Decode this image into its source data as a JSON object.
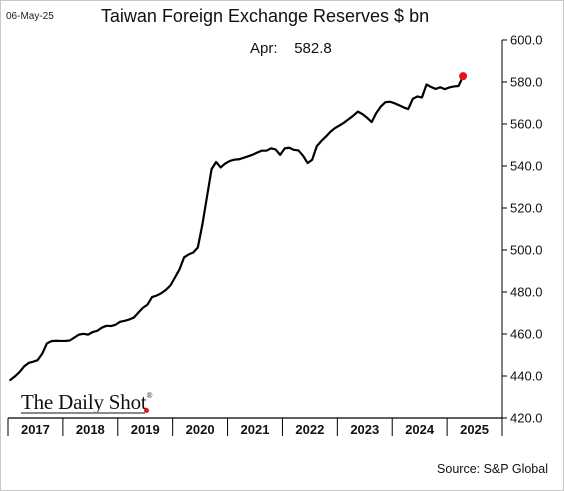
{
  "header": {
    "date": "06-May-25",
    "title": "Taiwan Foreign Exchange Reserves $ bn",
    "annotation_label": "Apr:",
    "annotation_value": "582.8"
  },
  "footer": {
    "source": "Source: S&P Global",
    "logo_text": "The Daily Shot",
    "logo_mark": "®"
  },
  "colors": {
    "line": "#000000",
    "marker": "#e8121b",
    "axis": "#000000"
  },
  "chart_data": {
    "type": "line",
    "title": "Taiwan Foreign Exchange Reserves $ bn",
    "xlabel": "",
    "ylabel": "",
    "grid": false,
    "y_axis_side": "right",
    "ylim": [
      420,
      600
    ],
    "y_ticks": [
      420.0,
      440.0,
      460.0,
      480.0,
      500.0,
      520.0,
      540.0,
      560.0,
      580.0,
      600.0
    ],
    "y_tick_labels": [
      "420.0",
      "440.0",
      "460.0",
      "480.0",
      "500.0",
      "520.0",
      "540.0",
      "560.0",
      "580.0",
      "600.0"
    ],
    "x_start": "2017-01",
    "x_end": "2025-04",
    "year_labels": [
      "2017",
      "2018",
      "2019",
      "2020",
      "2021",
      "2022",
      "2023",
      "2024",
      "2025"
    ],
    "series": [
      {
        "frequency": "monthly",
        "x": [
          "2017-01",
          "2017-02",
          "2017-03",
          "2017-04",
          "2017-05",
          "2017-06",
          "2017-07",
          "2017-08",
          "2017-09",
          "2017-10",
          "2017-11",
          "2017-12",
          "2018-01",
          "2018-02",
          "2018-03",
          "2018-04",
          "2018-05",
          "2018-06",
          "2018-07",
          "2018-08",
          "2018-09",
          "2018-10",
          "2018-11",
          "2018-12",
          "2019-01",
          "2019-02",
          "2019-03",
          "2019-04",
          "2019-05",
          "2019-06",
          "2019-07",
          "2019-08",
          "2019-09",
          "2019-10",
          "2019-11",
          "2019-12",
          "2020-01",
          "2020-02",
          "2020-03",
          "2020-04",
          "2020-05",
          "2020-06",
          "2020-07",
          "2020-08",
          "2020-09",
          "2020-10",
          "2020-11",
          "2020-12",
          "2021-01",
          "2021-02",
          "2021-03",
          "2021-04",
          "2021-05",
          "2021-06",
          "2021-07",
          "2021-08",
          "2021-09",
          "2021-10",
          "2021-11",
          "2021-12",
          "2022-01",
          "2022-02",
          "2022-03",
          "2022-04",
          "2022-05",
          "2022-06",
          "2022-07",
          "2022-08",
          "2022-09",
          "2022-10",
          "2022-11",
          "2022-12",
          "2023-01",
          "2023-02",
          "2023-03",
          "2023-04",
          "2023-05",
          "2023-06",
          "2023-07",
          "2023-08",
          "2023-09",
          "2023-10",
          "2023-11",
          "2023-12",
          "2024-01",
          "2024-02",
          "2024-03",
          "2024-04",
          "2024-05",
          "2024-06",
          "2024-07",
          "2024-08",
          "2024-09",
          "2024-10",
          "2024-11",
          "2024-12",
          "2025-01",
          "2025-02",
          "2025-03",
          "2025-04"
        ],
        "values": [
          438.1,
          439.8,
          441.8,
          444.5,
          446.2,
          446.8,
          447.6,
          450.7,
          455.5,
          456.6,
          456.8,
          456.7,
          456.7,
          456.9,
          458.3,
          459.7,
          460.1,
          459.7,
          460.9,
          461.5,
          463.0,
          463.9,
          463.8,
          464.4,
          465.8,
          466.3,
          466.9,
          467.8,
          470.2,
          472.5,
          474.0,
          477.6,
          478.3,
          479.4,
          481.0,
          483.1,
          486.9,
          490.8,
          496.5,
          497.9,
          498.8,
          501.2,
          512.2,
          525.3,
          538.5,
          541.9,
          539.3,
          541.2,
          542.4,
          543.0,
          543.2,
          543.9,
          544.6,
          545.4,
          546.4,
          547.3,
          547.3,
          548.4,
          547.9,
          545.3,
          548.4,
          548.7,
          547.7,
          547.4,
          544.9,
          541.4,
          543.0,
          549.4,
          551.9,
          554.0,
          556.3,
          558.1,
          559.3,
          560.7,
          562.3,
          564.0,
          565.9,
          564.7,
          563.0,
          560.9,
          565.2,
          568.3,
          570.4,
          570.6,
          569.9,
          568.9,
          567.9,
          567.1,
          572.0,
          573.1,
          572.6,
          578.8,
          577.6,
          576.7,
          577.5,
          576.6,
          577.4,
          577.9,
          578.1,
          582.8
        ]
      }
    ],
    "highlight": {
      "x": "2025-04",
      "value": 582.8
    }
  }
}
